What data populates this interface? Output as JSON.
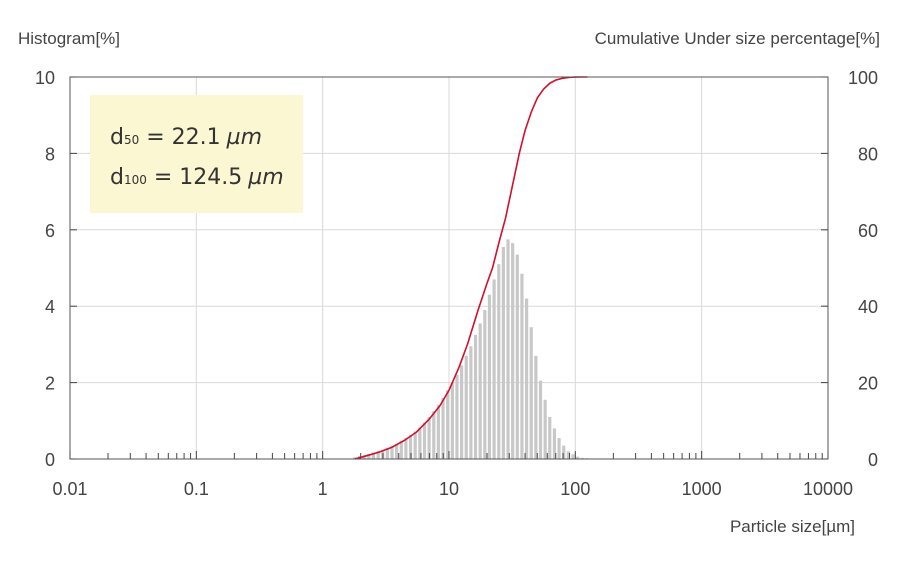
{
  "chart_data": {
    "type": "bar+line",
    "x_scale": "log",
    "xlim": [
      0.01,
      10000
    ],
    "ylim_left": [
      0,
      10
    ],
    "ylim_right": [
      0,
      100
    ],
    "grid": true,
    "left_axis_title": "Histogram[%]",
    "right_axis_title": "Cumulative Under size percentage[%]",
    "x_axis_title": "Particle size[µm]",
    "x_ticks": [
      0.01,
      0.1,
      1,
      10,
      100,
      1000,
      10000
    ],
    "x_tick_labels": [
      "0.01",
      "0.1",
      "1",
      "10",
      "100",
      "1000",
      "10000"
    ],
    "y_left_ticks": [
      0,
      2,
      4,
      6,
      8,
      10
    ],
    "y_left_tick_labels": [
      "0",
      "2",
      "4",
      "6",
      "8",
      "10"
    ],
    "y_right_ticks": [
      0,
      20,
      40,
      60,
      80,
      100
    ],
    "y_right_tick_labels": [
      "0",
      "20",
      "40",
      "60",
      "80",
      "100"
    ],
    "annotation": {
      "d50_sub": "50",
      "d50_value": "22.1",
      "d100_sub": "100",
      "d100_value": "124.5",
      "unit": "µm"
    },
    "series": [
      {
        "kind": "histogram",
        "axis": "left",
        "x": [
          1.8,
          1.96,
          2.13,
          2.32,
          2.52,
          2.75,
          2.99,
          3.25,
          3.54,
          3.85,
          4.19,
          4.56,
          4.96,
          5.4,
          5.88,
          6.4,
          6.96,
          7.58,
          8.24,
          8.97,
          9.76,
          10.63,
          11.56,
          12.58,
          13.69,
          14.9,
          16.22,
          17.65,
          19.21,
          20.9,
          22.75,
          24.76,
          26.94,
          29.32,
          31.91,
          34.73,
          37.79,
          41.13,
          44.76,
          48.71,
          53.01,
          57.69,
          62.78,
          68.32,
          74.35,
          80.91,
          88.05,
          95.82,
          104.3,
          113.5,
          123.5
        ],
        "values": [
          0.05,
          0.08,
          0.1,
          0.13,
          0.17,
          0.21,
          0.25,
          0.3,
          0.35,
          0.4,
          0.48,
          0.55,
          0.63,
          0.72,
          0.82,
          0.95,
          1.1,
          1.25,
          1.42,
          1.6,
          1.8,
          2.0,
          2.2,
          2.45,
          2.7,
          2.95,
          3.25,
          3.55,
          3.9,
          4.3,
          4.7,
          5.1,
          5.55,
          5.75,
          5.65,
          5.35,
          4.85,
          4.2,
          3.45,
          2.7,
          2.05,
          1.55,
          1.1,
          0.8,
          0.55,
          0.35,
          0.2,
          0.12,
          0.06,
          0.03,
          0.02
        ]
      },
      {
        "kind": "cumulative",
        "axis": "right",
        "color": "#d0102c",
        "x": [
          1.8,
          2.2,
          2.8,
          3.5,
          4.5,
          5.5,
          7,
          8.5,
          10,
          12,
          14,
          17,
          20,
          22.1,
          25,
          28,
          32,
          36,
          40,
          45,
          50,
          56,
          63,
          70,
          80,
          90,
          100,
          112,
          124.5
        ],
        "values": [
          0,
          0.8,
          1.8,
          3,
          5,
          7,
          10.5,
          14,
          18,
          24,
          30,
          39,
          46,
          50,
          57,
          63,
          72,
          80,
          86,
          91,
          94.5,
          96.8,
          98.4,
          99.2,
          99.7,
          99.9,
          99.97,
          100,
          100
        ]
      }
    ]
  }
}
